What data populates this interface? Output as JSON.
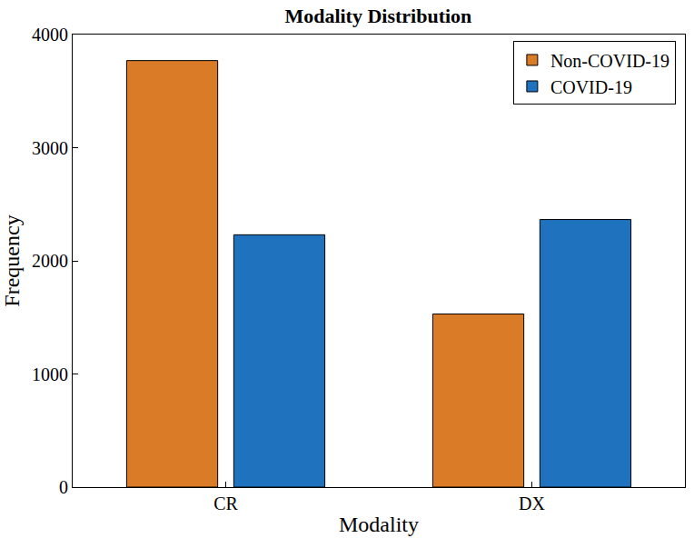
{
  "chart_data": {
    "type": "bar",
    "title": "Modality Distribution",
    "x_label": "Modality",
    "y_label": "Frequency",
    "categories": [
      "CR",
      "DX"
    ],
    "series": [
      {
        "name": "Non-COVID-19",
        "color": "#d97b27",
        "values": [
          3770,
          1530
        ]
      },
      {
        "name": "COVID-19",
        "color": "#1f72bd",
        "values": [
          2230,
          2365
        ]
      }
    ],
    "ylim": [
      0,
      4000
    ],
    "yticks": [
      0,
      1000,
      2000,
      3000,
      4000
    ],
    "grid": false,
    "legend": "upper right"
  }
}
